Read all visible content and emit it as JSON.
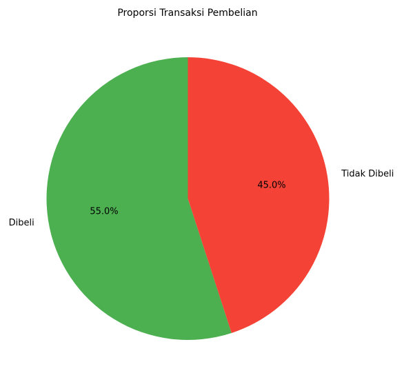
{
  "chart_data": {
    "type": "pie",
    "title": "Proporsi Transaksi Pembelian",
    "start_angle": 90,
    "direction": "counterclockwise",
    "slices": [
      {
        "label": "Dibeli",
        "value": 55.0,
        "pct_text": "55.0%",
        "color": "#4caf50"
      },
      {
        "label": "Tidak Dibeli",
        "value": 45.0,
        "pct_text": "45.0%",
        "color": "#f44336"
      }
    ]
  }
}
